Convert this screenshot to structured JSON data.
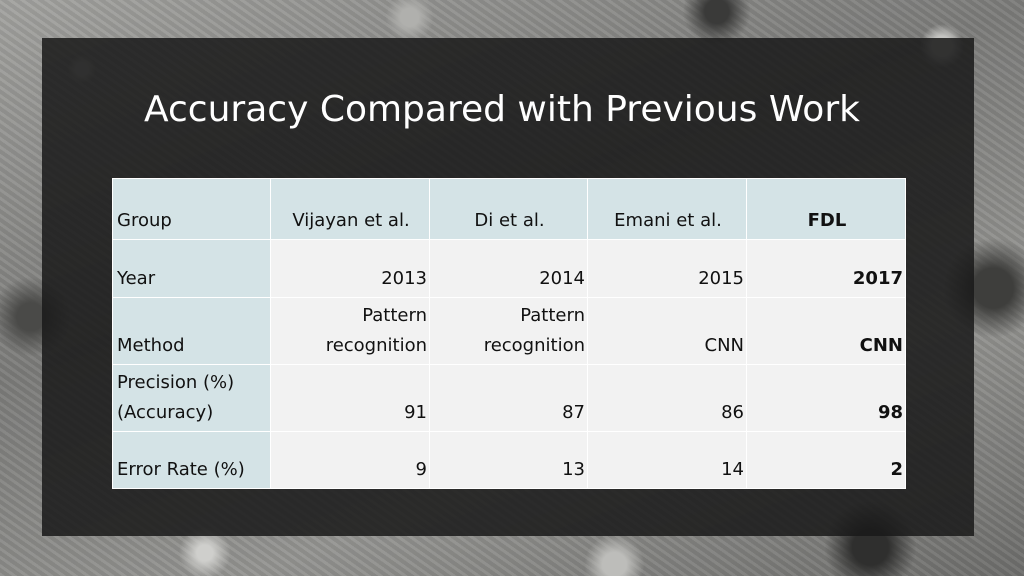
{
  "slide": {
    "title": "Accuracy Compared with Previous Work"
  },
  "table": {
    "header": {
      "label": "Group",
      "columns": [
        "Vijayan et al.",
        "Di et al.",
        "Emani et al.",
        "FDL"
      ]
    },
    "rows": [
      {
        "label": [
          "Year"
        ],
        "values": [
          [
            "2013"
          ],
          [
            "2014"
          ],
          [
            "2015"
          ],
          [
            "2017"
          ]
        ]
      },
      {
        "label": [
          "Method"
        ],
        "values": [
          [
            "Pattern",
            "recognition"
          ],
          [
            "Pattern",
            "recognition"
          ],
          [
            "CNN"
          ],
          [
            "CNN"
          ]
        ]
      },
      {
        "label": [
          "Precision (%)",
          "(Accuracy)"
        ],
        "values": [
          [
            "91"
          ],
          [
            "87"
          ],
          [
            "86"
          ],
          [
            "98"
          ]
        ]
      },
      {
        "label": [
          "Error Rate (%)"
        ],
        "values": [
          [
            "9"
          ],
          [
            "13"
          ],
          [
            "14"
          ],
          [
            "2"
          ]
        ]
      }
    ]
  }
}
